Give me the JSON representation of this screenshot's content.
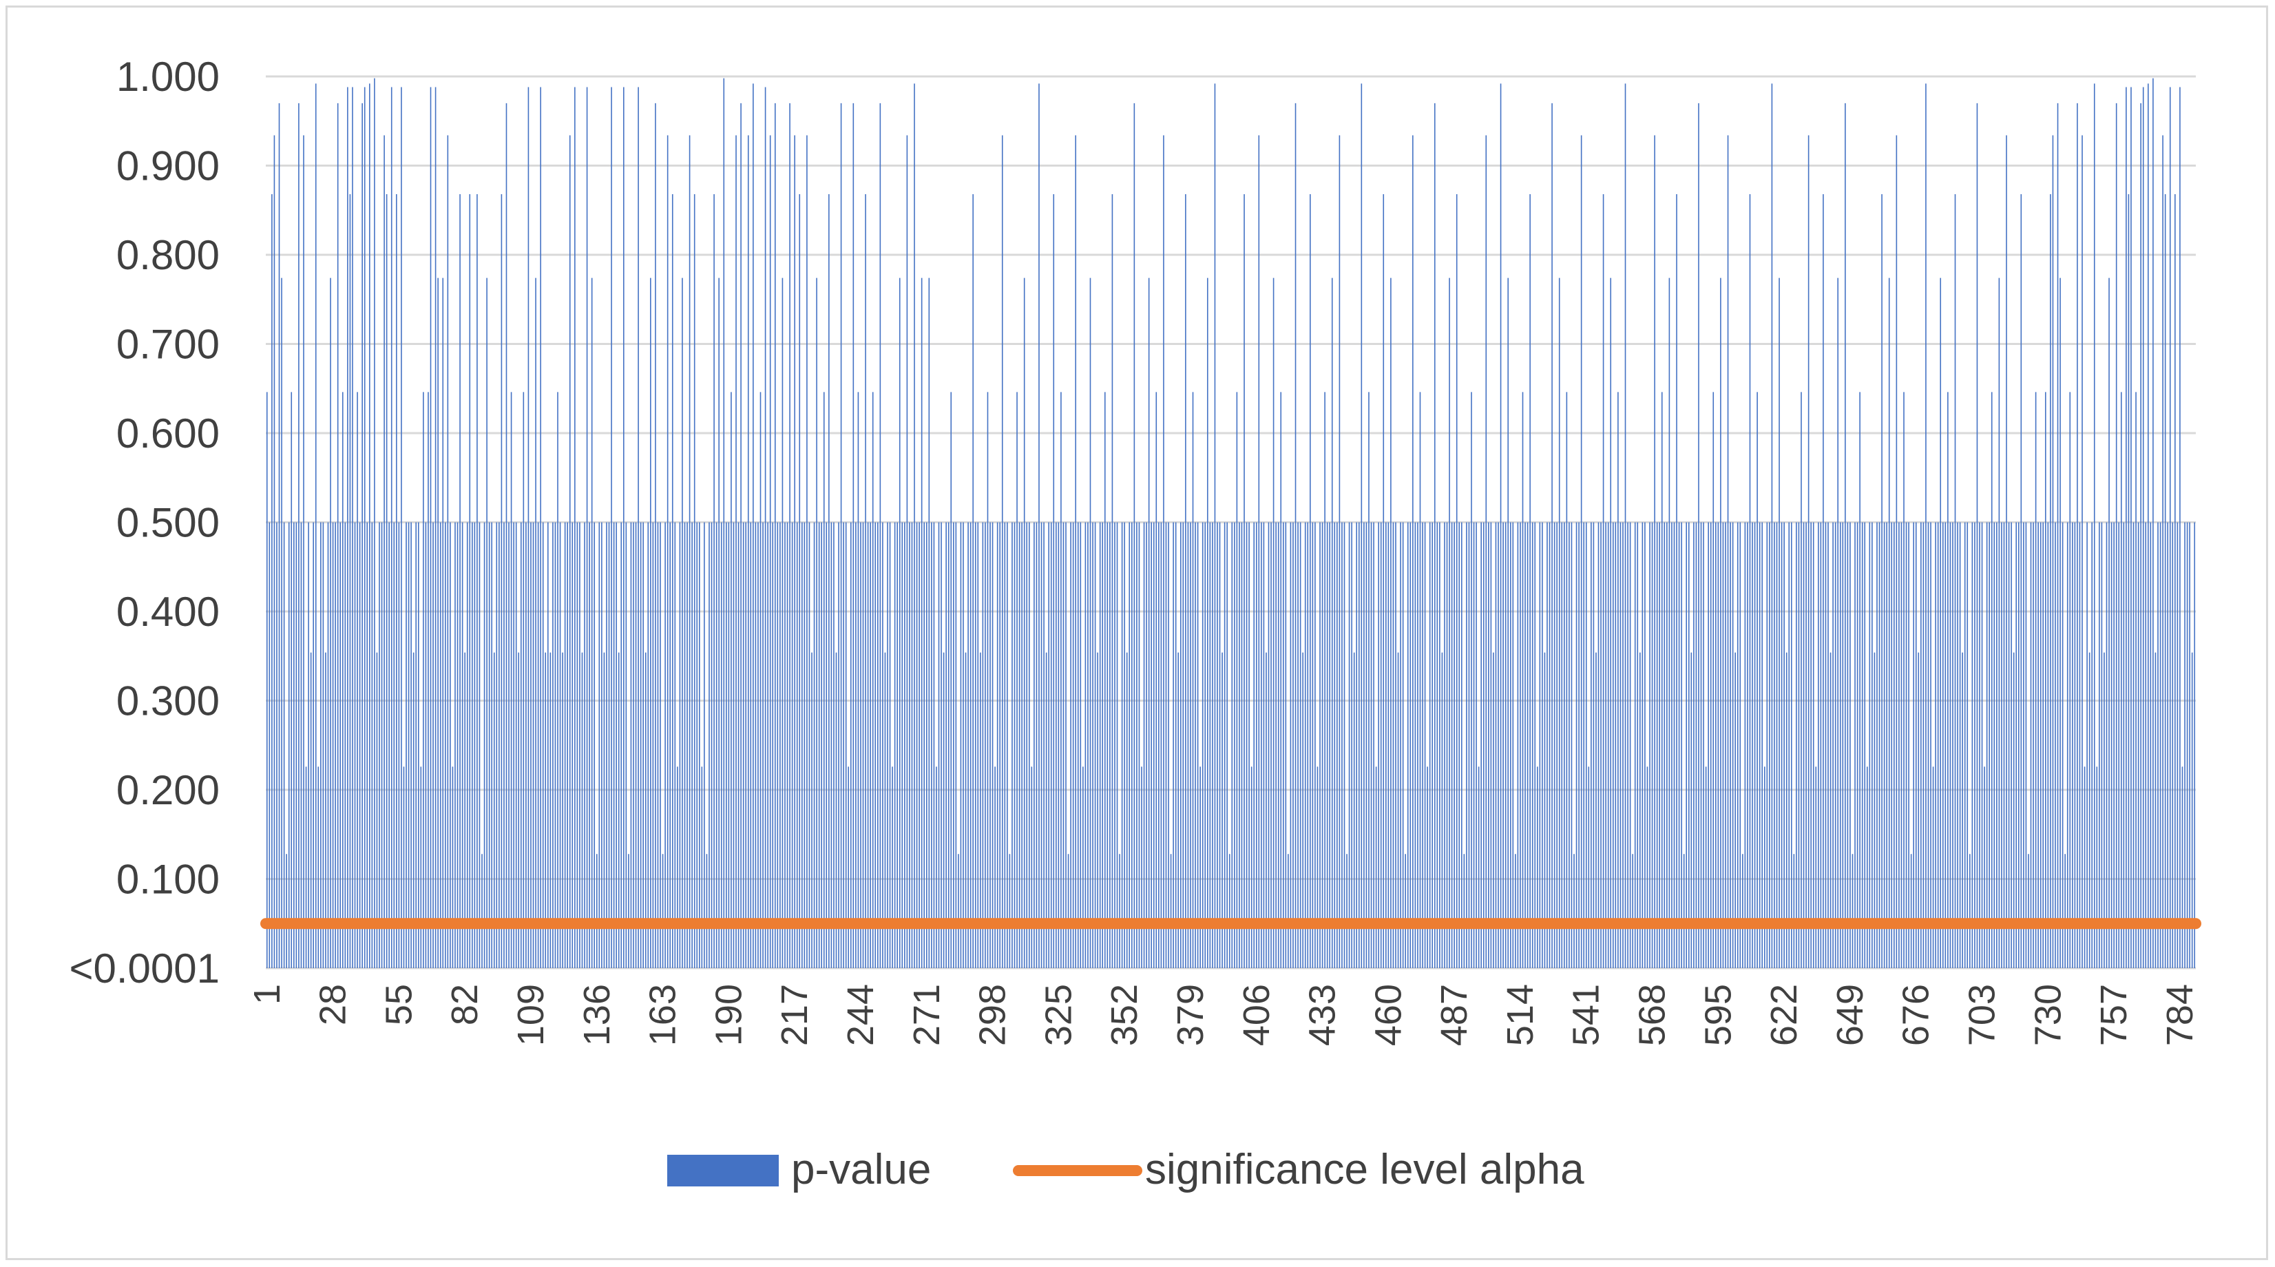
{
  "chart_data": {
    "type": "bar",
    "title": "",
    "xlabel": "",
    "ylabel": "",
    "ylim": [
      0,
      1.0
    ],
    "y_ticks": [
      {
        "value": 0.0,
        "label": "<0.0001"
      },
      {
        "value": 0.1,
        "label": "0.100"
      },
      {
        "value": 0.2,
        "label": "0.200"
      },
      {
        "value": 0.3,
        "label": "0.300"
      },
      {
        "value": 0.4,
        "label": "0.400"
      },
      {
        "value": 0.5,
        "label": "0.500"
      },
      {
        "value": 0.6,
        "label": "0.600"
      },
      {
        "value": 0.7,
        "label": "0.700"
      },
      {
        "value": 0.8,
        "label": "0.800"
      },
      {
        "value": 0.9,
        "label": "0.900"
      },
      {
        "value": 1.0,
        "label": "1.000"
      }
    ],
    "x_range": [
      1,
      790
    ],
    "x_tick_labels": [
      "1",
      "28",
      "55",
      "82",
      "109",
      "136",
      "163",
      "190",
      "217",
      "244",
      "271",
      "298",
      "325",
      "352",
      "379",
      "406",
      "433",
      "460",
      "487",
      "514",
      "541",
      "568",
      "595",
      "622",
      "649",
      "676",
      "703",
      "730",
      "757",
      "784"
    ],
    "grid": true,
    "legend_position": "bottom",
    "series": [
      {
        "name": "p-value",
        "kind": "bar",
        "color": "#4472c4",
        "values": [
          0.646,
          0.5,
          0.868,
          0.934,
          0.5,
          0.97,
          0.774,
          0.5,
          0.128,
          0.5,
          0.646,
          0.5,
          0.5,
          0.97,
          0.5,
          0.934,
          0.226,
          0.5,
          0.354,
          0.5,
          0.992,
          0.226,
          0.5,
          0.5,
          0.354,
          0.5,
          0.774,
          0.5,
          0.5,
          0.97,
          0.5,
          0.646,
          0.5,
          0.988,
          0.868,
          0.988,
          0.5,
          0.646,
          0.5,
          0.97,
          0.988,
          0.5,
          0.992,
          0.5,
          0.998,
          0.354,
          0.5,
          0.5,
          0.934,
          0.868,
          0.5,
          0.988,
          0.5,
          0.868,
          0.5,
          0.988,
          0.226,
          0.5,
          0.5,
          0.5,
          0.354,
          0.5,
          0.5,
          0.226,
          0.646,
          0.5,
          0.646,
          0.988,
          0.5,
          0.988,
          0.774,
          0.5,
          0.774,
          0.5,
          0.934,
          0.5,
          0.226,
          0.5,
          0.5,
          0.868,
          0.5,
          0.354,
          0.5,
          0.868,
          0.5,
          0.5,
          0.868,
          0.5,
          0.128,
          0.5,
          0.774,
          0.5,
          0.5,
          0.354,
          0.5,
          0.5,
          0.868,
          0.5,
          0.97,
          0.5,
          0.646,
          0.5,
          0.5,
          0.354,
          0.5,
          0.646,
          0.5,
          0.988,
          0.5,
          0.5,
          0.774,
          0.5,
          0.988,
          0.5,
          0.354,
          0.5,
          0.354,
          0.5,
          0.5,
          0.646,
          0.5,
          0.354,
          0.5,
          0.5,
          0.934,
          0.5,
          0.988,
          0.5,
          0.5,
          0.354,
          0.5,
          0.988,
          0.5,
          0.774,
          0.5,
          0.128,
          0.5,
          0.5,
          0.354,
          0.5,
          0.5,
          0.988,
          0.5,
          0.5,
          0.354,
          0.5,
          0.988,
          0.5,
          0.128,
          0.5,
          0.5,
          0.5,
          0.988,
          0.5,
          0.5,
          0.354,
          0.5,
          0.774,
          0.5,
          0.97,
          0.5,
          0.5,
          0.128,
          0.5,
          0.934,
          0.5,
          0.868,
          0.5,
          0.226,
          0.5,
          0.774,
          0.5,
          0.5,
          0.934,
          0.5,
          0.868,
          0.5,
          0.5,
          0.226,
          0.5,
          0.128,
          0.5,
          0.5,
          0.868,
          0.5,
          0.774,
          0.5,
          0.998,
          0.5,
          0.5,
          0.646,
          0.5,
          0.934,
          0.5,
          0.97,
          0.5,
          0.5,
          0.934,
          0.5,
          0.992,
          0.5,
          0.5,
          0.646,
          0.5,
          0.988,
          0.5,
          0.934,
          0.5,
          0.97,
          0.5,
          0.5,
          0.774,
          0.5,
          0.5,
          0.97,
          0.5,
          0.934,
          0.5,
          0.868,
          0.5,
          0.5,
          0.934,
          0.5,
          0.354,
          0.5,
          0.774,
          0.5,
          0.5,
          0.646,
          0.5,
          0.868,
          0.5,
          0.5,
          0.354,
          0.5,
          0.97,
          0.5,
          0.5,
          0.226,
          0.5,
          0.97,
          0.5,
          0.646,
          0.5,
          0.5,
          0.868,
          0.5,
          0.5,
          0.646,
          0.5,
          0.5,
          0.97,
          0.5,
          0.354,
          0.5,
          0.5,
          0.226,
          0.5,
          0.5,
          0.774,
          0.5,
          0.5,
          0.934,
          0.5,
          0.5,
          0.992,
          0.5,
          0.5,
          0.774,
          0.5,
          0.5,
          0.774,
          0.5,
          0.5,
          0.226,
          0.5,
          0.5,
          0.354,
          0.5,
          0.5,
          0.646,
          0.5,
          0.5,
          0.128,
          0.5,
          0.5,
          0.354,
          0.5,
          0.5,
          0.868,
          0.5,
          0.5,
          0.354,
          0.5,
          0.5,
          0.646,
          0.5,
          0.5,
          0.226,
          0.5,
          0.5,
          0.934,
          0.5,
          0.5,
          0.128,
          0.5,
          0.5,
          0.646,
          0.5,
          0.5,
          0.774,
          0.5,
          0.5,
          0.226,
          0.5,
          0.5,
          0.992,
          0.5,
          0.5,
          0.354,
          0.5,
          0.5,
          0.868,
          0.5,
          0.5,
          0.646,
          0.5,
          0.5,
          0.128,
          0.5,
          0.5,
          0.934,
          0.5,
          0.5,
          0.226,
          0.5,
          0.5,
          0.774,
          0.5,
          0.5,
          0.354,
          0.5,
          0.5,
          0.646,
          0.5,
          0.5,
          0.868,
          0.5,
          0.5,
          0.128,
          0.5,
          0.5,
          0.354,
          0.5,
          0.5,
          0.97,
          0.5,
          0.5,
          0.226,
          0.5,
          0.5,
          0.774,
          0.5,
          0.5,
          0.646,
          0.5,
          0.5,
          0.934,
          0.5,
          0.5,
          0.128,
          0.5,
          0.5,
          0.354,
          0.5,
          0.5,
          0.868,
          0.5,
          0.5,
          0.646,
          0.5,
          0.5,
          0.226,
          0.5,
          0.5,
          0.774,
          0.5,
          0.5,
          0.992,
          0.5,
          0.5,
          0.354,
          0.5,
          0.5,
          0.128,
          0.5,
          0.5,
          0.646,
          0.5,
          0.5,
          0.868,
          0.5,
          0.5,
          0.226,
          0.5,
          0.5,
          0.934,
          0.5,
          0.5,
          0.354,
          0.5,
          0.5,
          0.774,
          0.5,
          0.5,
          0.646,
          0.5,
          0.5,
          0.128,
          0.5,
          0.5,
          0.97,
          0.5,
          0.5,
          0.354,
          0.5,
          0.5,
          0.868,
          0.5,
          0.5,
          0.226,
          0.5,
          0.5,
          0.646,
          0.5,
          0.5,
          0.774,
          0.5,
          0.5,
          0.934,
          0.5,
          0.5,
          0.128,
          0.5,
          0.5,
          0.354,
          0.5,
          0.5,
          0.992,
          0.5,
          0.5,
          0.646,
          0.5,
          0.5,
          0.226,
          0.5,
          0.5,
          0.868,
          0.5,
          0.5,
          0.774,
          0.5,
          0.5,
          0.354,
          0.5,
          0.5,
          0.128,
          0.5,
          0.5,
          0.934,
          0.5,
          0.5,
          0.646,
          0.5,
          0.5,
          0.226,
          0.5,
          0.5,
          0.97,
          0.5,
          0.5,
          0.354,
          0.5,
          0.5,
          0.774,
          0.5,
          0.5,
          0.868,
          0.5,
          0.5,
          0.128,
          0.5,
          0.5,
          0.646,
          0.5,
          0.5,
          0.226,
          0.5,
          0.5,
          0.934,
          0.5,
          0.5,
          0.354,
          0.5,
          0.5,
          0.992,
          0.5,
          0.5,
          0.774,
          0.5,
          0.5,
          0.128,
          0.5,
          0.5,
          0.646,
          0.5,
          0.5,
          0.868,
          0.5,
          0.5,
          0.226,
          0.5,
          0.5,
          0.354,
          0.5,
          0.5,
          0.97,
          0.5,
          0.5,
          0.774,
          0.5,
          0.5,
          0.646,
          0.5,
          0.5,
          0.128,
          0.5,
          0.5,
          0.934,
          0.5,
          0.5,
          0.226,
          0.5,
          0.5,
          0.354,
          0.5,
          0.5,
          0.868,
          0.5,
          0.5,
          0.774,
          0.5,
          0.5,
          0.646,
          0.5,
          0.5,
          0.992,
          0.5,
          0.5,
          0.128,
          0.5,
          0.5,
          0.354,
          0.5,
          0.5,
          0.226,
          0.5,
          0.5,
          0.934,
          0.5,
          0.5,
          0.646,
          0.5,
          0.5,
          0.774,
          0.5,
          0.5,
          0.868,
          0.5,
          0.5,
          0.128,
          0.5,
          0.5,
          0.354,
          0.5,
          0.5,
          0.97,
          0.5,
          0.5,
          0.226,
          0.5,
          0.5,
          0.646,
          0.5,
          0.5,
          0.774,
          0.5,
          0.5,
          0.934,
          0.5,
          0.5,
          0.354,
          0.5,
          0.5,
          0.128,
          0.5,
          0.5,
          0.868,
          0.5,
          0.5,
          0.646,
          0.5,
          0.5,
          0.226,
          0.5,
          0.5,
          0.992,
          0.5,
          0.5,
          0.774,
          0.5,
          0.5,
          0.354,
          0.5,
          0.5,
          0.128,
          0.5,
          0.5,
          0.646,
          0.5,
          0.5,
          0.934,
          0.5,
          0.5,
          0.226,
          0.5,
          0.5,
          0.868,
          0.5,
          0.5,
          0.354,
          0.5,
          0.5,
          0.774,
          0.5,
          0.5,
          0.97,
          0.5,
          0.5,
          0.128,
          0.5,
          0.5,
          0.646,
          0.5,
          0.5,
          0.226,
          0.5,
          0.5,
          0.354,
          0.5,
          0.5,
          0.868,
          0.5,
          0.5,
          0.774,
          0.5,
          0.5,
          0.934,
          0.5,
          0.5,
          0.646,
          0.5,
          0.5,
          0.128,
          0.5,
          0.5,
          0.354,
          0.5,
          0.5,
          0.992,
          0.5,
          0.5,
          0.226,
          0.5,
          0.5,
          0.774,
          0.5,
          0.5,
          0.646,
          0.5,
          0.5,
          0.868,
          0.5,
          0.5,
          0.354,
          0.5,
          0.5,
          0.128,
          0.5,
          0.5,
          0.97,
          0.5,
          0.5,
          0.226,
          0.5,
          0.5,
          0.646,
          0.5,
          0.5,
          0.774,
          0.5,
          0.5,
          0.934,
          0.5,
          0.5,
          0.354,
          0.5,
          0.5,
          0.868,
          0.5,
          0.5,
          0.128,
          0.5,
          0.5,
          0.646,
          0.5,
          0.5,
          0.5
        ]
      },
      {
        "name": "significance level alpha",
        "kind": "line",
        "color": "#ed7d31",
        "y": 0.05
      }
    ]
  }
}
